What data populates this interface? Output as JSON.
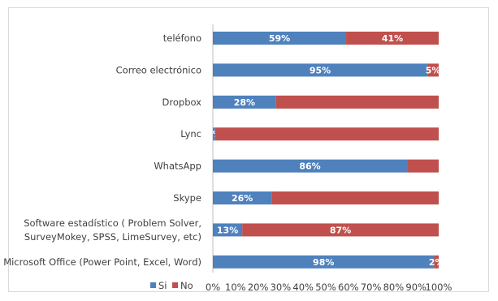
{
  "chart_data": {
    "type": "bar",
    "orientation": "horizontal",
    "stacked": "percent",
    "categories": [
      "teléfono",
      "Correo electrónico",
      "Dropbox",
      "Lync",
      "WhatsApp",
      "Skype",
      [
        "Software estadístico  ( Problem Solver,",
        "SurveyMokey, SPSS, LimeSurvey, etc)"
      ],
      "Microsoft Office (Power Point, Excel, Word)"
    ],
    "series": [
      {
        "name": "Si",
        "color": "#4f81bd",
        "values": [
          59,
          95,
          28,
          1,
          86,
          26,
          13,
          98
        ],
        "labels": [
          "59%",
          "95%",
          "28%",
          "1%",
          "86%",
          "26%",
          "13%",
          "98%"
        ]
      },
      {
        "name": "No",
        "color": "#c0504d",
        "values": [
          41,
          5,
          72,
          99,
          14,
          74,
          87,
          2
        ],
        "labels": [
          "41%",
          "5%",
          "",
          "",
          "",
          "",
          "87%",
          "2%"
        ]
      }
    ],
    "x_ticks": [
      "0%",
      "10%",
      "20%",
      "30%",
      "40%",
      "50%",
      "60%",
      "70%",
      "80%",
      "90%",
      "100%"
    ],
    "xlim": [
      0,
      100
    ],
    "grid": false,
    "legend_position": "bottom-left"
  }
}
